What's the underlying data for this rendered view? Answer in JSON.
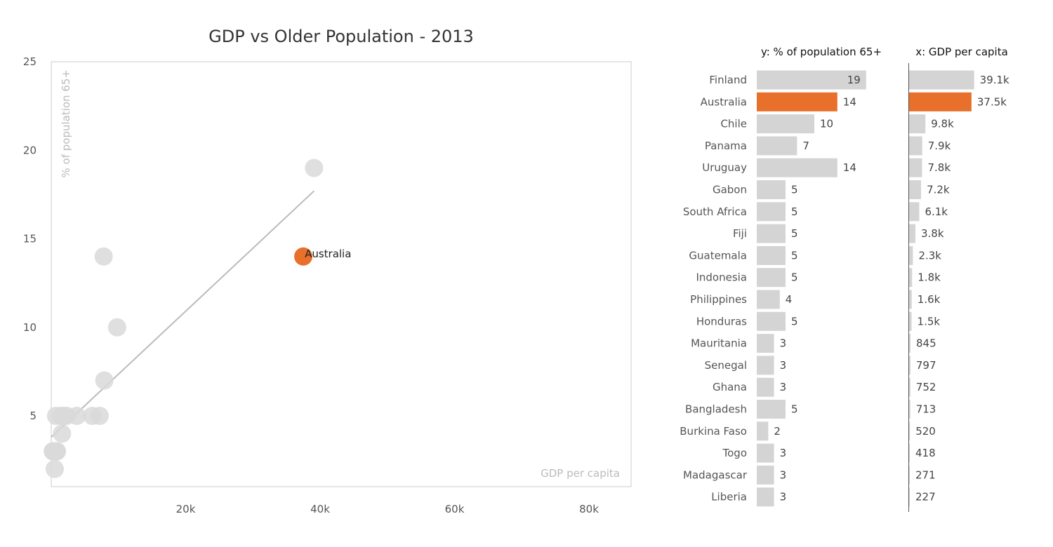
{
  "chart_data": {
    "type": "scatter",
    "title": "GDP vs Older Population - 2013",
    "xlabel": "GDP per capita",
    "ylabel": "% of population 65+",
    "xlim": [
      0,
      85000
    ],
    "ylim": [
      1,
      25
    ],
    "x_ticks": [
      "20k",
      "40k",
      "60k",
      "80k"
    ],
    "y_ticks": [
      "5",
      "10",
      "15",
      "20",
      "25"
    ],
    "highlight": "Australia",
    "trendline": {
      "x": [
        0,
        39100
      ],
      "y": [
        3.8,
        17.7
      ]
    },
    "points": [
      {
        "country": "Finland",
        "x": 39100,
        "y": 19,
        "x_label": "39.1k",
        "y_label": "19"
      },
      {
        "country": "Australia",
        "x": 37500,
        "y": 14,
        "x_label": "37.5k",
        "y_label": "14"
      },
      {
        "country": "Chile",
        "x": 9800,
        "y": 10,
        "x_label": "9.8k",
        "y_label": "10"
      },
      {
        "country": "Panama",
        "x": 7900,
        "y": 7,
        "x_label": "7.9k",
        "y_label": "7"
      },
      {
        "country": "Uruguay",
        "x": 7800,
        "y": 14,
        "x_label": "7.8k",
        "y_label": "14"
      },
      {
        "country": "Gabon",
        "x": 7200,
        "y": 5,
        "x_label": "7.2k",
        "y_label": "5"
      },
      {
        "country": "South Africa",
        "x": 6100,
        "y": 5,
        "x_label": "6.1k",
        "y_label": "5"
      },
      {
        "country": "Fiji",
        "x": 3800,
        "y": 5,
        "x_label": "3.8k",
        "y_label": "5"
      },
      {
        "country": "Guatemala",
        "x": 2300,
        "y": 5,
        "x_label": "2.3k",
        "y_label": "5"
      },
      {
        "country": "Indonesia",
        "x": 1800,
        "y": 5,
        "x_label": "1.8k",
        "y_label": "5"
      },
      {
        "country": "Philippines",
        "x": 1600,
        "y": 4,
        "x_label": "1.6k",
        "y_label": "4"
      },
      {
        "country": "Honduras",
        "x": 1500,
        "y": 5,
        "x_label": "1.5k",
        "y_label": "5"
      },
      {
        "country": "Mauritania",
        "x": 845,
        "y": 3,
        "x_label": "845",
        "y_label": "3"
      },
      {
        "country": "Senegal",
        "x": 797,
        "y": 3,
        "x_label": "797",
        "y_label": "3"
      },
      {
        "country": "Ghana",
        "x": 752,
        "y": 3,
        "x_label": "752",
        "y_label": "3"
      },
      {
        "country": "Bangladesh",
        "x": 713,
        "y": 5,
        "x_label": "713",
        "y_label": "5"
      },
      {
        "country": "Burkina Faso",
        "x": 520,
        "y": 2,
        "x_label": "520",
        "y_label": "2"
      },
      {
        "country": "Togo",
        "x": 418,
        "y": 3,
        "x_label": "418",
        "y_label": "3"
      },
      {
        "country": "Madagascar",
        "x": 271,
        "y": 3,
        "x_label": "271",
        "y_label": "3"
      },
      {
        "country": "Liberia",
        "x": 227,
        "y": 3,
        "x_label": "227",
        "y_label": "3"
      }
    ],
    "bar_panels": {
      "y_header": "y: % of population 65+",
      "x_header": "x: GDP per capita"
    },
    "colors": {
      "highlight": "#E8702A",
      "highlight_text": "#E8702A",
      "point": "#d9d9d9",
      "bar": "#d4d4d4",
      "trendline": "#bbbbbb",
      "frame": "#cccccc"
    }
  }
}
